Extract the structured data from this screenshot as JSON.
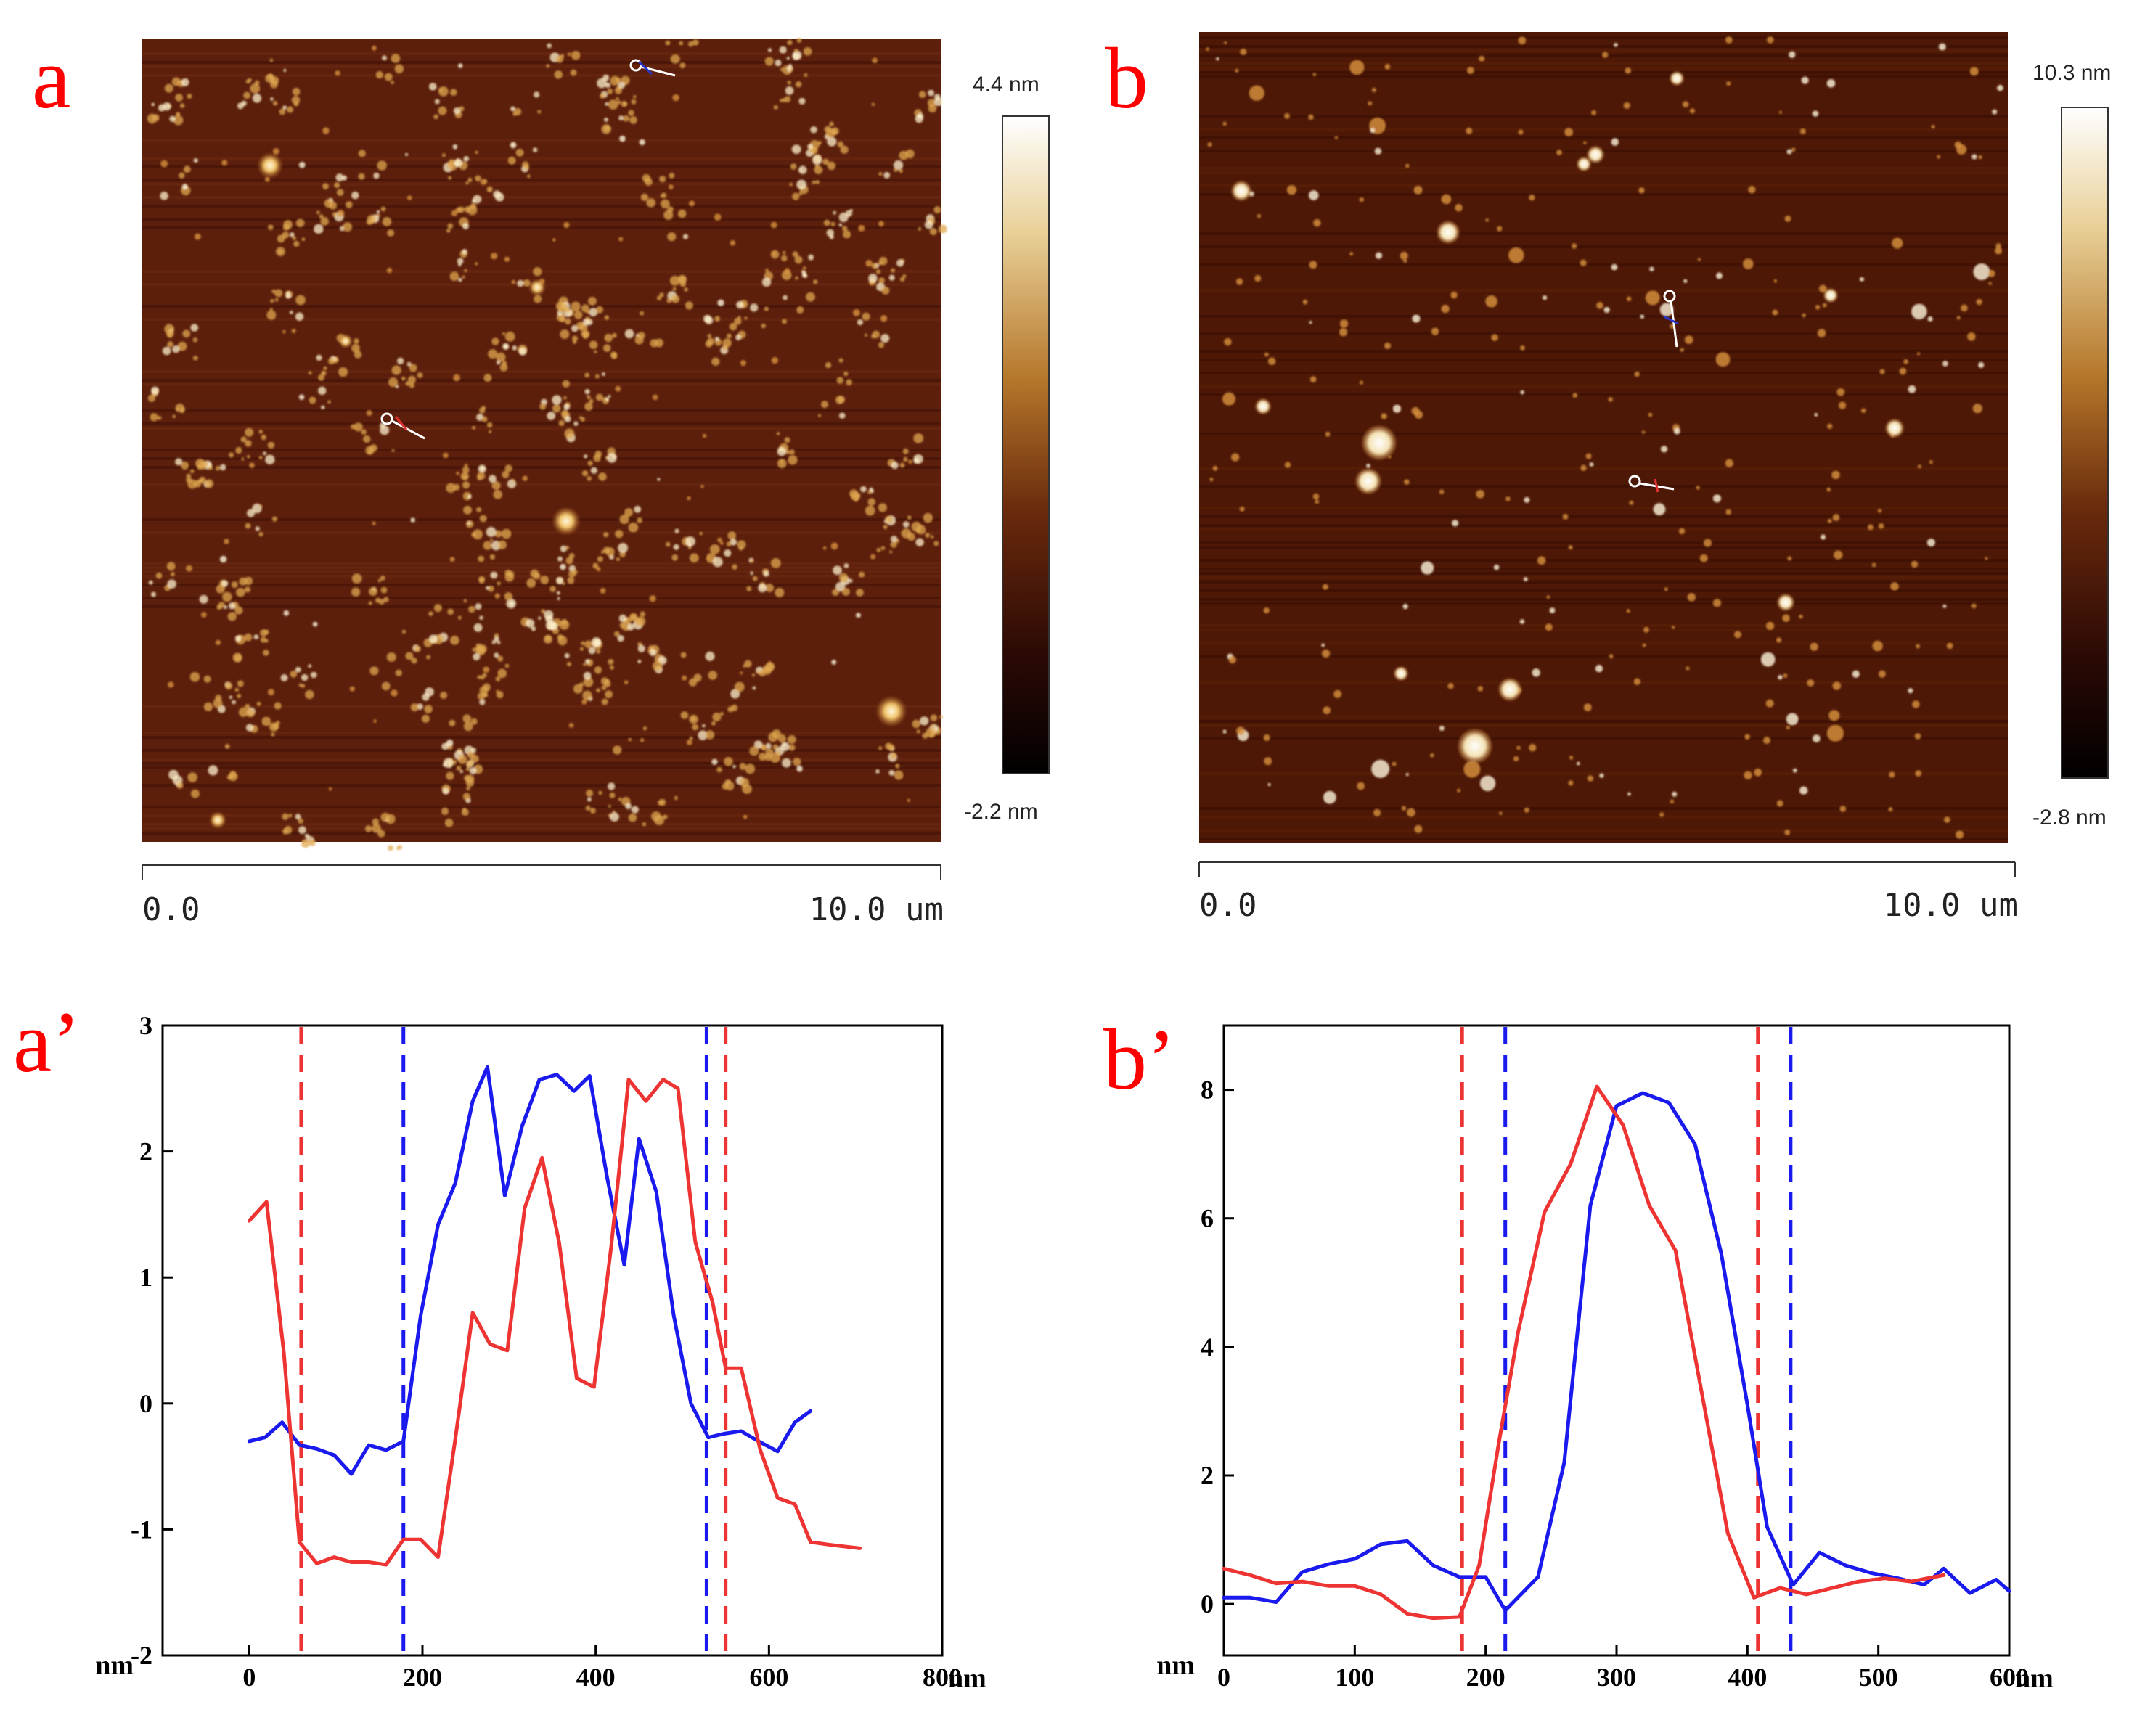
{
  "figure": {
    "panels": [
      {
        "id": "a",
        "letter": "a",
        "scale_start": "0.0",
        "scale_end": "10.0 um",
        "colorbar_max": "4.4 nm",
        "colorbar_min": "-2.2 nm"
      },
      {
        "id": "b",
        "letter": "b",
        "scale_start": "0.0",
        "scale_end": "10.0 um",
        "colorbar_max": "10.3 nm",
        "colorbar_min": "-2.8 nm"
      }
    ],
    "colors": {
      "red": "#ee3333",
      "blue": "#1a1aee",
      "afm_bg_a": "#5c1f0c",
      "afm_bg_b": "#4e1806",
      "letter": "#ff0000"
    }
  },
  "chart_data": [
    {
      "id": "a_prime",
      "letter": "a’",
      "type": "line",
      "xlabel": "nm",
      "ylabel": "nm",
      "xlim": [
        -100,
        800
      ],
      "ylim": [
        -2,
        3
      ],
      "xticks": [
        0,
        200,
        400,
        600,
        800
      ],
      "yticks": [
        -2,
        -1,
        0,
        1,
        2,
        3
      ],
      "series": [
        {
          "name": "blue",
          "color": "#1a1aee",
          "x": [
            0,
            18,
            38,
            58,
            78,
            98,
            118,
            138,
            158,
            178,
            198,
            218,
            238,
            258,
            275,
            295,
            315,
            335,
            355,
            375,
            393,
            413,
            433,
            450,
            470,
            490,
            510,
            530,
            548,
            568,
            588,
            610,
            630,
            648
          ],
          "y": [
            -0.3,
            -0.27,
            -0.15,
            -0.33,
            -0.36,
            -0.41,
            -0.56,
            -0.33,
            -0.37,
            -0.3,
            0.7,
            1.42,
            1.75,
            2.4,
            2.67,
            1.65,
            2.2,
            2.57,
            2.61,
            2.48,
            2.6,
            1.8,
            1.1,
            2.1,
            1.68,
            0.7,
            0.0,
            -0.27,
            -0.24,
            -0.22,
            -0.3,
            -0.38,
            -0.15,
            -0.06
          ]
        },
        {
          "name": "red",
          "color": "#ee3333",
          "x": [
            0,
            20,
            40,
            58,
            78,
            98,
            118,
            138,
            158,
            178,
            198,
            218,
            238,
            258,
            278,
            298,
            318,
            338,
            358,
            378,
            398,
            418,
            438,
            458,
            478,
            495,
            515,
            535,
            550,
            568,
            590,
            610,
            630,
            648,
            668,
            705
          ],
          "y": [
            1.45,
            1.6,
            0.4,
            -1.1,
            -1.27,
            -1.22,
            -1.26,
            -1.26,
            -1.28,
            -1.08,
            -1.08,
            -1.22,
            -0.28,
            0.72,
            0.47,
            0.42,
            1.55,
            1.95,
            1.27,
            0.2,
            0.13,
            1.25,
            2.57,
            2.4,
            2.57,
            2.5,
            1.28,
            0.8,
            0.28,
            0.28,
            -0.37,
            -0.75,
            -0.8,
            -1.1,
            -1.12,
            -1.15
          ]
        }
      ],
      "vlines": [
        {
          "x": 60,
          "color": "#ee3333"
        },
        {
          "x": 178,
          "color": "#1a1aee"
        },
        {
          "x": 528,
          "color": "#1a1aee"
        },
        {
          "x": 550,
          "color": "#ee3333"
        }
      ]
    },
    {
      "id": "b_prime",
      "letter": "b’",
      "type": "line",
      "xlabel": "nm",
      "ylabel": "nm",
      "xlim": [
        0,
        600
      ],
      "ylim": [
        -0.8,
        9
      ],
      "xticks": [
        0,
        100,
        200,
        300,
        400,
        500,
        600
      ],
      "yticks": [
        0,
        2,
        4,
        6,
        8
      ],
      "series": [
        {
          "name": "blue",
          "color": "#1a1aee",
          "x": [
            0,
            20,
            40,
            60,
            80,
            100,
            120,
            140,
            160,
            180,
            200,
            215,
            240,
            260,
            280,
            300,
            320,
            340,
            360,
            380,
            400,
            415,
            435,
            455,
            475,
            495,
            515,
            535,
            550,
            570,
            590,
            600
          ],
          "y": [
            0.1,
            0.1,
            0.03,
            0.5,
            0.62,
            0.7,
            0.93,
            0.98,
            0.6,
            0.42,
            0.42,
            -0.1,
            0.42,
            2.2,
            6.2,
            7.75,
            7.95,
            7.8,
            7.15,
            5.45,
            3.1,
            1.2,
            0.3,
            0.8,
            0.6,
            0.48,
            0.4,
            0.3,
            0.55,
            0.17,
            0.38,
            0.2
          ]
        },
        {
          "name": "red",
          "color": "#ee3333",
          "x": [
            0,
            20,
            40,
            60,
            80,
            100,
            120,
            140,
            160,
            180,
            195,
            210,
            225,
            245,
            265,
            285,
            305,
            325,
            345,
            365,
            385,
            405,
            425,
            445,
            465,
            485,
            505,
            525,
            550
          ],
          "y": [
            0.55,
            0.45,
            0.32,
            0.35,
            0.28,
            0.28,
            0.15,
            -0.15,
            -0.22,
            -0.2,
            0.6,
            2.5,
            4.25,
            6.1,
            6.85,
            8.05,
            7.45,
            6.2,
            5.5,
            3.3,
            1.1,
            0.1,
            0.25,
            0.15,
            0.25,
            0.35,
            0.4,
            0.35,
            0.45
          ]
        }
      ],
      "vlines": [
        {
          "x": 182,
          "color": "#ee3333"
        },
        {
          "x": 215,
          "color": "#1a1aee"
        },
        {
          "x": 408,
          "color": "#ee3333"
        },
        {
          "x": 433,
          "color": "#1a1aee"
        }
      ]
    }
  ]
}
